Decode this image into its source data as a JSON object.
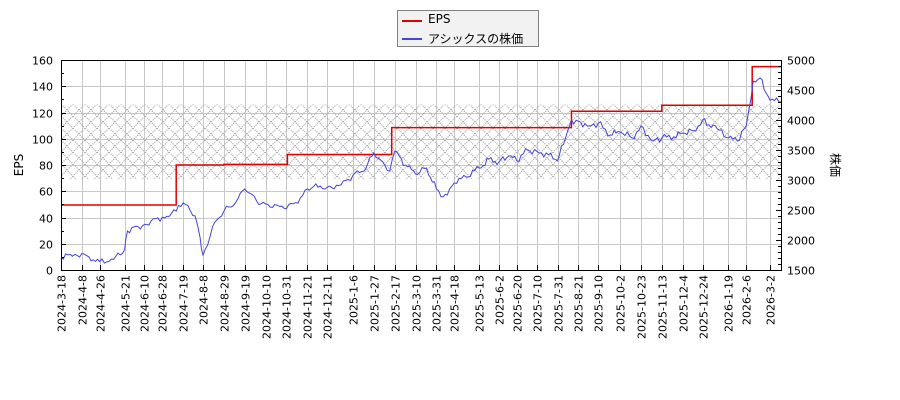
{
  "legend": {
    "items": [
      {
        "label": "EPS",
        "color": "#e00000"
      },
      {
        "label": "アシックスの株価",
        "color": "#4444dd"
      }
    ]
  },
  "axes": {
    "left_title": "EPS",
    "right_title": "株価"
  },
  "chart_data": {
    "type": "line",
    "title": "",
    "xlabel": "",
    "ylabel": "EPS",
    "y2label": "株価",
    "ylim": [
      0,
      160
    ],
    "y2lim": [
      1500,
      5000
    ],
    "yticks": [
      0,
      20,
      40,
      60,
      80,
      100,
      120,
      140,
      160
    ],
    "y2ticks": [
      1500,
      2000,
      2500,
      3000,
      3500,
      4000,
      4500,
      5000
    ],
    "grid": true,
    "legend_position": "top-center",
    "shaded_band_eps": [
      69,
      126
    ],
    "x_tick_labels": [
      "2024-3-18",
      "2024-4-8",
      "2024-4-26",
      "2024-5-21",
      "2024-6-10",
      "2024-6-28",
      "2024-7-19",
      "2024-8-8",
      "2024-8-29",
      "2024-9-19",
      "2024-10-10",
      "2024-10-31",
      "2024-11-21",
      "2024-12-11",
      "2025-1-6",
      "2025-1-27",
      "2025-2-17",
      "2025-3-10",
      "2025-3-31",
      "2025-4-18",
      "2025-5-13",
      "2025-6-2",
      "2025-6-20",
      "2025-7-10",
      "2025-7-31",
      "2025-8-21",
      "2025-9-10",
      "2025-10-2",
      "2025-10-23",
      "2025-11-13",
      "2025-12-4",
      "2025-12-24",
      "2026-1-19",
      "2026-2-6",
      "2026-3-2"
    ],
    "series": [
      {
        "name": "EPS",
        "axis": "left",
        "color": "#e00000",
        "step": true,
        "x": [
          "2024-3-18",
          "2024-7-12",
          "2024-8-29",
          "2024-11-1",
          "2025-2-14",
          "2025-8-14",
          "2025-11-13",
          "2026-2-12",
          "2026-3-13"
        ],
        "values": [
          49.5,
          80,
          80.5,
          88,
          108.5,
          121,
          125.5,
          155,
          155
        ]
      },
      {
        "name": "アシックスの株価",
        "axis": "right",
        "color": "#4444dd",
        "x": [
          "2024-3-18",
          "2024-4-1",
          "2024-4-15",
          "2024-4-26",
          "2024-5-10",
          "2024-5-21",
          "2024-5-24",
          "2024-6-10",
          "2024-6-28",
          "2024-7-12",
          "2024-7-19",
          "2024-7-31",
          "2024-8-5",
          "2024-8-8",
          "2024-8-20",
          "2024-8-29",
          "2024-9-10",
          "2024-9-19",
          "2024-10-1",
          "2024-10-10",
          "2024-10-24",
          "2024-10-31",
          "2024-11-14",
          "2024-11-21",
          "2024-12-4",
          "2024-12-11",
          "2024-12-25",
          "2025-1-6",
          "2025-1-17",
          "2025-1-27",
          "2025-2-5",
          "2025-2-12",
          "2025-2-17",
          "2025-2-28",
          "2025-3-10",
          "2025-3-21",
          "2025-3-31",
          "2025-4-7",
          "2025-4-11",
          "2025-4-18",
          "2025-4-30",
          "2025-5-13",
          "2025-5-23",
          "2025-6-2",
          "2025-6-12",
          "2025-6-20",
          "2025-7-1",
          "2025-7-10",
          "2025-7-22",
          "2025-7-31",
          "2025-8-8",
          "2025-8-14",
          "2025-8-21",
          "2025-9-1",
          "2025-9-10",
          "2025-9-22",
          "2025-10-2",
          "2025-10-14",
          "2025-10-23",
          "2025-11-4",
          "2025-11-13",
          "2025-11-25",
          "2025-12-4",
          "2025-12-15",
          "2025-12-24",
          "2026-1-8",
          "2026-1-19",
          "2026-1-28",
          "2026-2-6",
          "2026-2-13",
          "2026-2-20",
          "2026-2-26",
          "2026-3-2",
          "2026-3-13"
        ],
        "values": [
          1700,
          1760,
          1720,
          1640,
          1680,
          1840,
          2150,
          2260,
          2380,
          2480,
          2620,
          2400,
          2050,
          1750,
          2300,
          2480,
          2630,
          2850,
          2650,
          2600,
          2560,
          2520,
          2700,
          2850,
          2900,
          2880,
          2920,
          3080,
          3150,
          3450,
          3300,
          3150,
          3480,
          3250,
          3100,
          3200,
          2850,
          2720,
          2750,
          2950,
          3050,
          3200,
          3350,
          3300,
          3400,
          3320,
          3500,
          3480,
          3420,
          3320,
          3700,
          4000,
          3980,
          3900,
          3950,
          3750,
          3800,
          3700,
          3900,
          3650,
          3700,
          3720,
          3780,
          3820,
          4000,
          3850,
          3700,
          3650,
          3900,
          4650,
          4700,
          4450,
          4330,
          4300
        ]
      }
    ]
  }
}
